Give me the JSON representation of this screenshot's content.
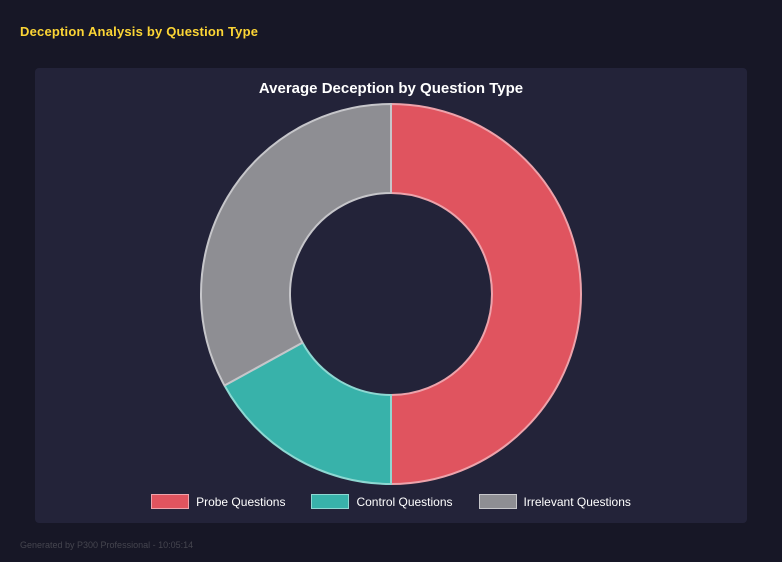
{
  "page": {
    "title": "Deception Analysis by Question Type",
    "footer": "Generated by P300 Professional - 10:05:14"
  },
  "chart_data": {
    "type": "pie",
    "subtype": "donut",
    "title": "Average Deception by Question Type",
    "categories": [
      "Probe Questions",
      "Control Questions",
      "Irrelevant Questions"
    ],
    "values": [
      50,
      17,
      33
    ],
    "colors": [
      "#e0545f",
      "#38b2aa",
      "#8e8e93"
    ],
    "border_colors": [
      "#eda3ab",
      "#8ed8d2",
      "#c6c6ca"
    ],
    "legend_position": "bottom",
    "background": "#232339",
    "inner_radius_ratio": 0.53
  },
  "theme": {
    "page_background": "#171726",
    "panel_background": "#232339",
    "accent_yellow": "#fcd535",
    "text_white": "#ffffff",
    "footer_gray": "#45454f"
  }
}
